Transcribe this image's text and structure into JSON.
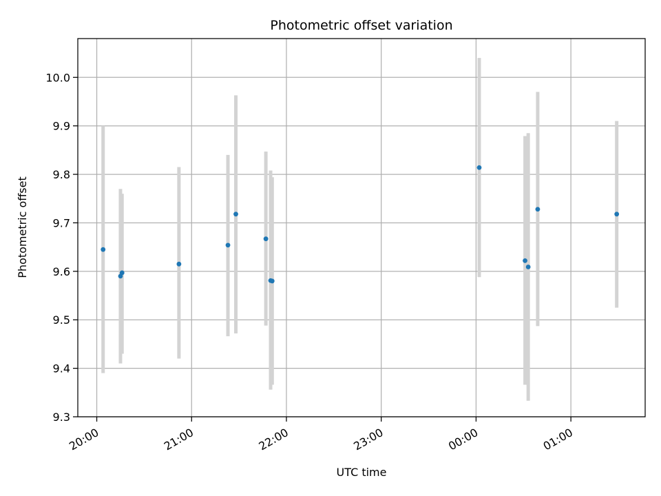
{
  "chart_data": {
    "type": "scatter",
    "title": "Photometric offset variation",
    "xlabel": "UTC time",
    "ylabel": "Photometric offset",
    "x_unit": "UTC",
    "xlim": [
      "19:48",
      "25:47"
    ],
    "ylim": [
      9.3,
      10.08
    ],
    "grid": true,
    "x_ticks": [
      {
        "value": "20:00",
        "label": "20:00"
      },
      {
        "value": "21:00",
        "label": "21:00"
      },
      {
        "value": "22:00",
        "label": "22:00"
      },
      {
        "value": "23:00",
        "label": "23:00"
      },
      {
        "value": "24:00",
        "label": "00:00"
      },
      {
        "value": "25:00",
        "label": "01:00"
      }
    ],
    "y_ticks": [
      9.3,
      9.4,
      9.5,
      9.6,
      9.7,
      9.8,
      9.9,
      10.0
    ],
    "y_tick_labels": [
      "9.3",
      "9.4",
      "9.5",
      "9.6",
      "9.7",
      "9.8",
      "9.9",
      "10.0"
    ],
    "colors": {
      "points": "#1f77b4",
      "errorbars": "#d3d3d3",
      "grid": "#b0b0b0"
    },
    "series": [
      {
        "points": [
          {
            "x": "20:04",
            "y": 9.645,
            "err_low": 9.39,
            "err_high": 9.9
          },
          {
            "x": "20:15",
            "y": 9.59,
            "err_low": 9.41,
            "err_high": 9.77
          },
          {
            "x": "20:16",
            "y": 9.597,
            "err_low": 9.43,
            "err_high": 9.76
          },
          {
            "x": "20:52",
            "y": 9.615,
            "err_low": 9.42,
            "err_high": 9.815
          },
          {
            "x": "21:23",
            "y": 9.654,
            "err_low": 9.466,
            "err_high": 9.84
          },
          {
            "x": "21:28",
            "y": 9.718,
            "err_low": 9.472,
            "err_high": 9.963
          },
          {
            "x": "21:47",
            "y": 9.667,
            "err_low": 9.488,
            "err_high": 9.847
          },
          {
            "x": "21:50",
            "y": 9.581,
            "err_low": 9.356,
            "err_high": 9.808
          },
          {
            "x": "21:51",
            "y": 9.58,
            "err_low": 9.366,
            "err_high": 9.794
          },
          {
            "x": "24:02",
            "y": 9.814,
            "err_low": 9.588,
            "err_high": 10.04
          },
          {
            "x": "24:31",
            "y": 9.622,
            "err_low": 9.366,
            "err_high": 9.879
          },
          {
            "x": "24:33",
            "y": 9.609,
            "err_low": 9.333,
            "err_high": 9.885
          },
          {
            "x": "24:39",
            "y": 9.728,
            "err_low": 9.487,
            "err_high": 9.97
          },
          {
            "x": "25:29",
            "y": 9.718,
            "err_low": 9.525,
            "err_high": 9.91
          }
        ]
      }
    ]
  }
}
